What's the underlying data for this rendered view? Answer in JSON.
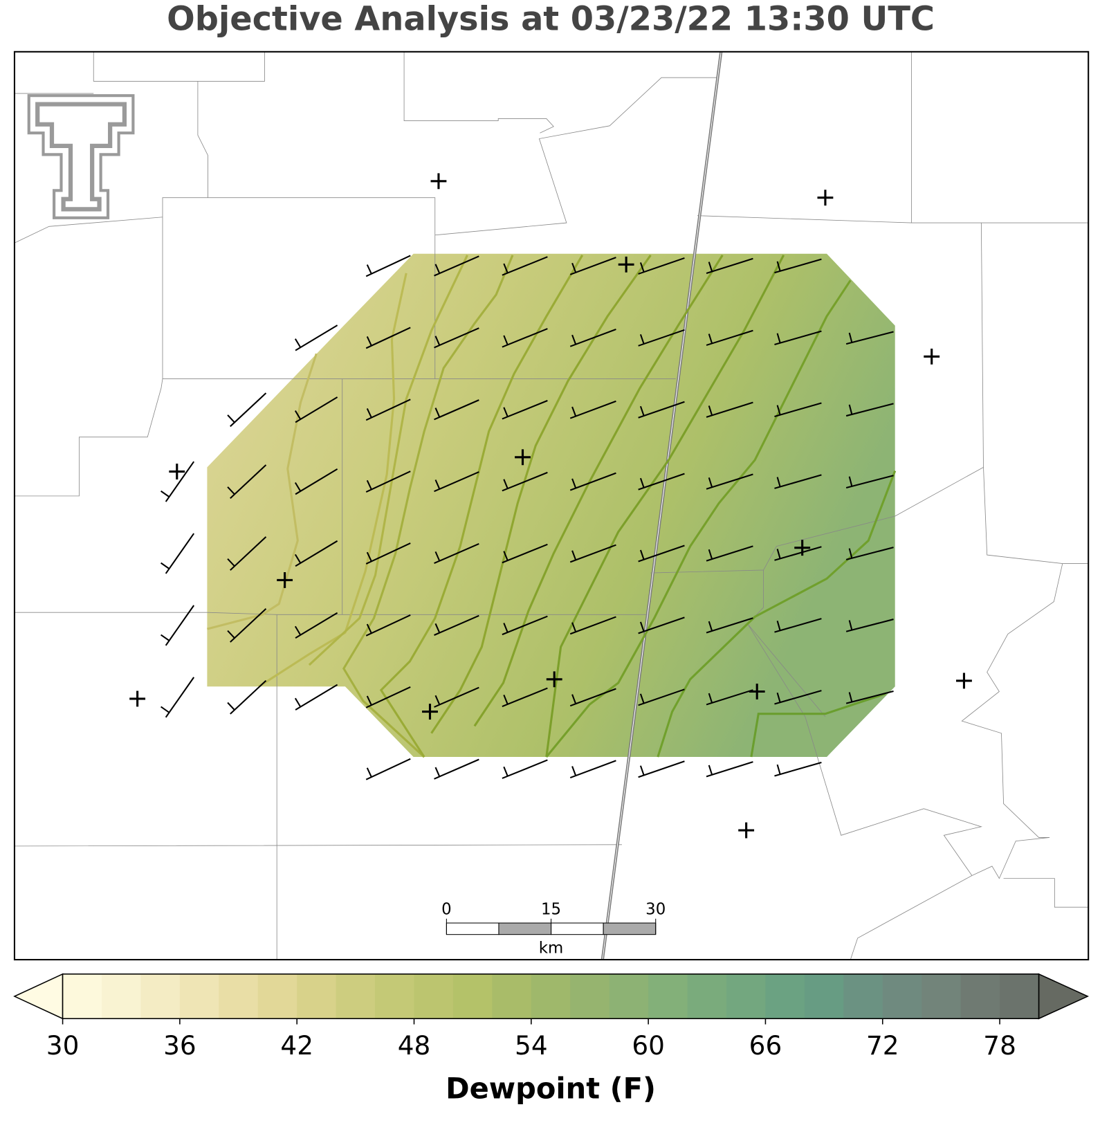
{
  "chart_data": {
    "type": "map",
    "title": "Objective Analysis at 03/23/22 13:30 UTC",
    "colorbar": {
      "label": "Dewpoint (F)",
      "lim": [
        30,
        80
      ],
      "step": 2,
      "ticks": [
        30,
        36,
        42,
        48,
        54,
        60,
        66,
        72,
        78
      ],
      "colors": [
        "#fdf9dc",
        "#f9f3d2",
        "#f4ecc4",
        "#efe5b5",
        "#e9dea6",
        "#e2d898",
        "#d8d28a",
        "#cdcd7f",
        "#c4c976",
        "#bcc56f",
        "#b4c269",
        "#a9bc69",
        "#9fb86b",
        "#96b46f",
        "#8db274",
        "#83b079",
        "#7aab7c",
        "#73a77f",
        "#6ba282",
        "#679c83",
        "#6b9282",
        "#6f8a7f",
        "#72847a",
        "#6f7a72",
        "#6b736c"
      ],
      "under_color": "#fffbe3",
      "over_color": "#666a62"
    },
    "scale_bar": {
      "ticks": [
        "0",
        "15",
        "30"
      ],
      "unit": "km"
    }
  }
}
